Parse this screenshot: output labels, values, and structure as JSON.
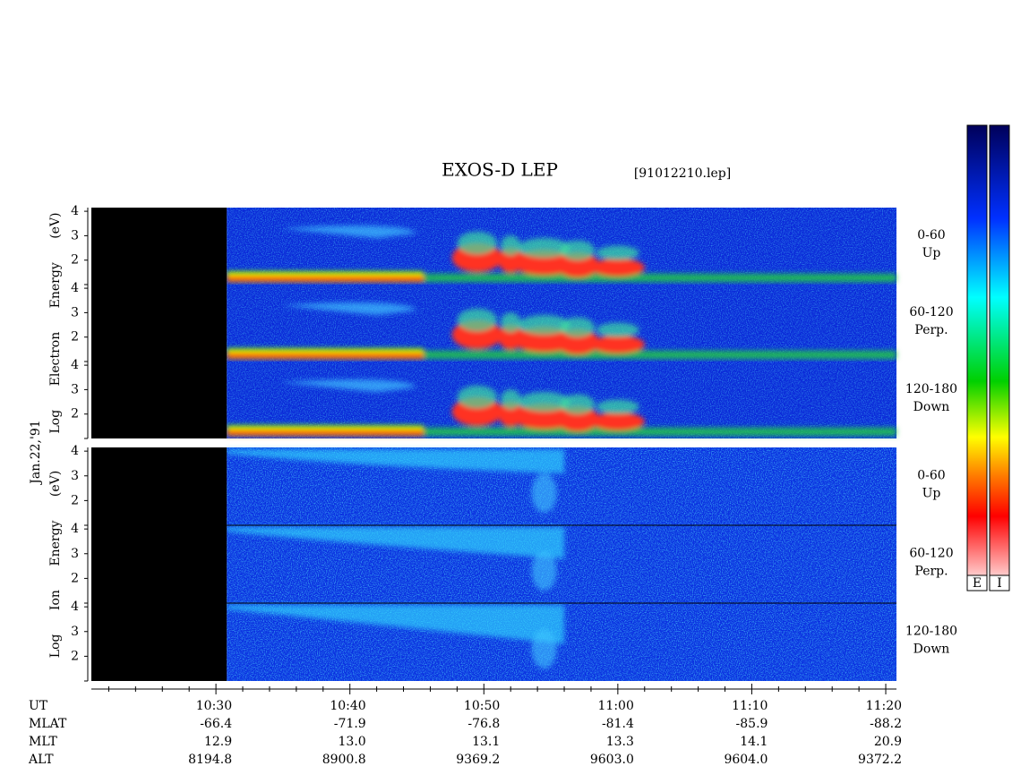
{
  "chart_data": {
    "type": "spectrogram",
    "title": "EXOS-D LEP",
    "subtitle": "[91012210.lep]",
    "date_label": "Jan.22,'91",
    "xlim": [
      620.7,
      680.8
    ],
    "xticks": [
      {
        "value": 630,
        "label": "10:30"
      },
      {
        "value": 640,
        "label": "10:40"
      },
      {
        "value": 650,
        "label": "10:50"
      },
      {
        "value": 660,
        "label": "11:00"
      },
      {
        "value": 670,
        "label": "11:10"
      },
      {
        "value": 680,
        "label": "11:20"
      }
    ],
    "xminor": [
      622,
      624,
      626,
      628,
      632,
      634,
      636,
      638,
      642,
      644,
      646,
      648,
      652,
      654,
      656,
      658,
      662,
      664,
      666,
      668,
      672,
      674,
      676,
      678
    ],
    "groups": [
      {
        "ylabel": "Log Electron Energy (eV)",
        "panels": [
          {
            "label": "0-60",
            "sublabel": "Up",
            "ylim": [
              1,
              4.15
            ],
            "yticks": [
              2,
              3,
              4
            ]
          },
          {
            "label": "60-120",
            "sublabel": "Perp.",
            "ylim": [
              1,
              4.15
            ],
            "yticks": [
              2,
              3,
              4
            ]
          },
          {
            "label": "120-180",
            "sublabel": "Down",
            "ylim": [
              1,
              4.15
            ],
            "yticks": [
              2,
              3,
              4
            ]
          }
        ]
      },
      {
        "ylabel": "Log Ion Energy (eV)",
        "panels": [
          {
            "label": "0-60",
            "sublabel": "Up",
            "ylim": [
              1,
              4.15
            ],
            "yticks": [
              2,
              3,
              4
            ]
          },
          {
            "label": "60-120",
            "sublabel": "Perp.",
            "ylim": [
              1,
              4.15
            ],
            "yticks": [
              2,
              3,
              4
            ]
          },
          {
            "label": "120-180",
            "sublabel": "Down",
            "ylim": [
              1,
              4.15
            ],
            "yticks": [
              2,
              3,
              4
            ]
          }
        ]
      }
    ],
    "ut_label": "UT",
    "ephemeris": [
      {
        "name": "MLAT",
        "values": [
          -66.4,
          -71.9,
          -76.8,
          -81.4,
          -85.9,
          -88.2
        ]
      },
      {
        "name": "MLT",
        "values": [
          12.9,
          {
            "value": 13,
            "label": "13.0"
          },
          13.1,
          13.3,
          14.1,
          20.9
        ]
      },
      {
        "name": "ALT",
        "values": [
          8194.8,
          8900.8,
          9369.2,
          {
            "value": 9603,
            "label": "9603.0"
          },
          {
            "value": 9604,
            "label": "9604.0"
          },
          9372.2
        ]
      }
    ],
    "colorbars": [
      "E",
      "I"
    ]
  }
}
